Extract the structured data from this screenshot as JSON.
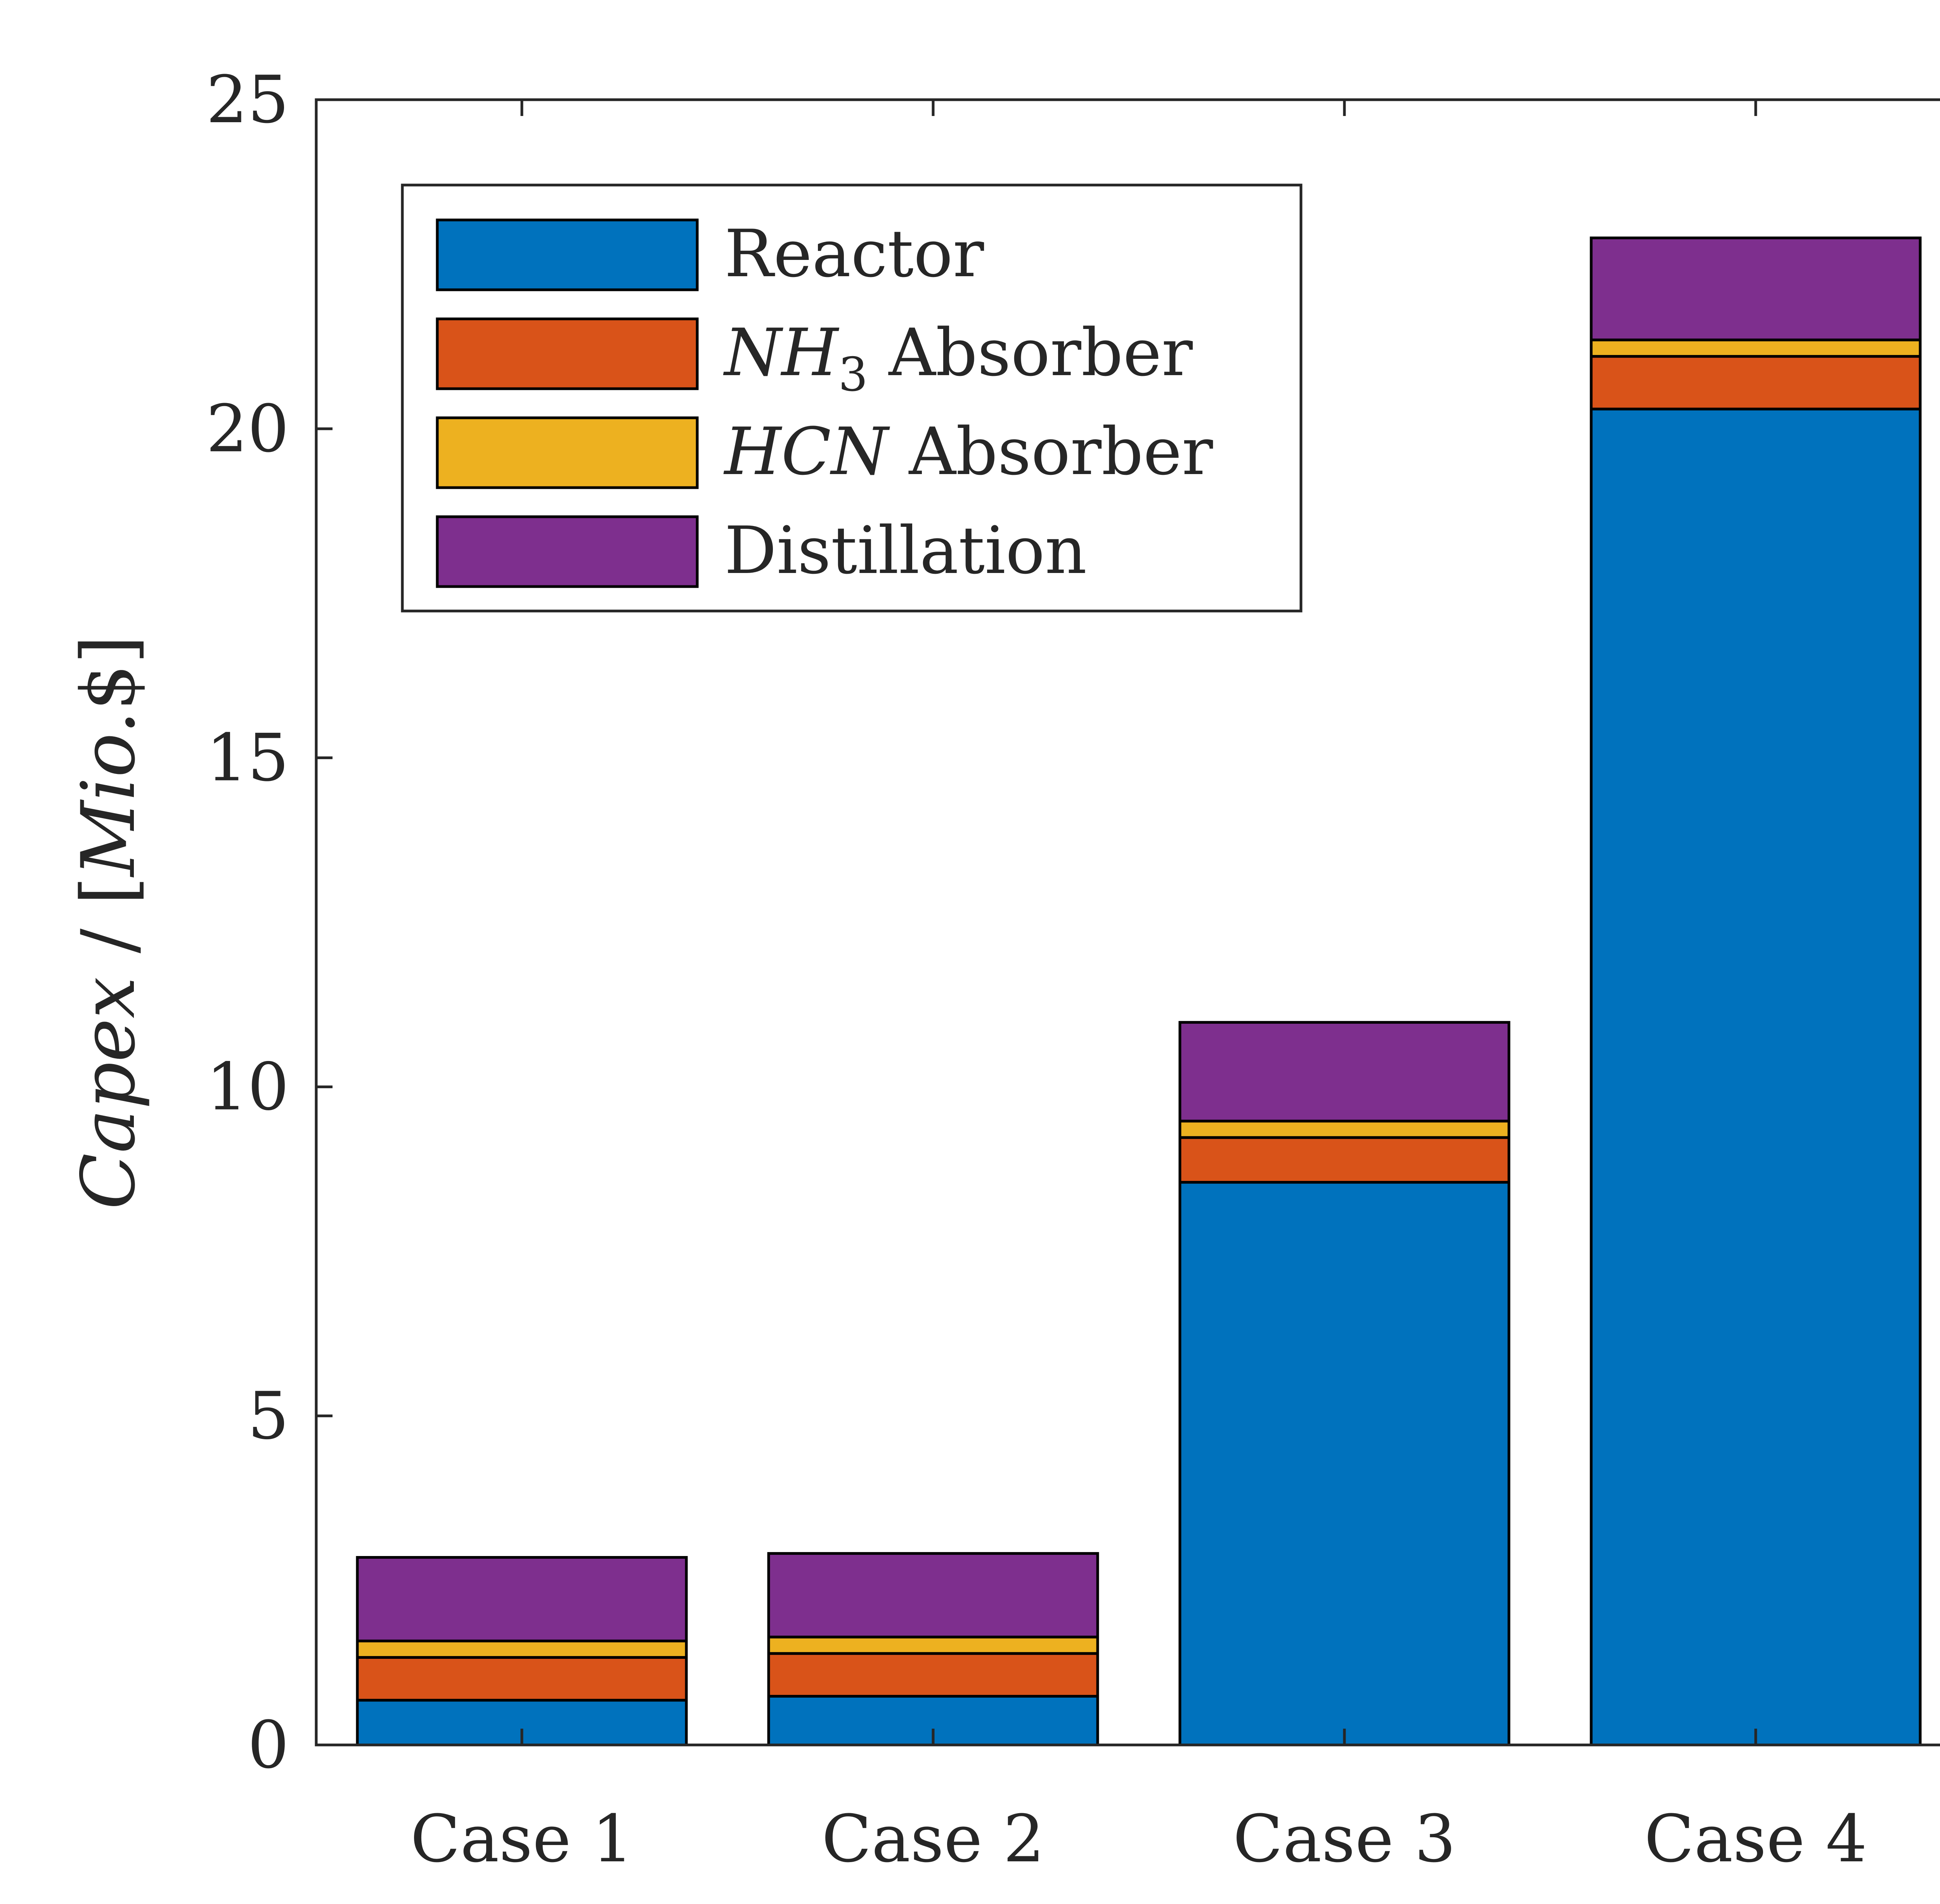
{
  "chart_data": {
    "type": "bar",
    "stacked": true,
    "categories": [
      "Case 1",
      "Case 2",
      "Case 3",
      "Case 4"
    ],
    "series": [
      {
        "name": "Reactor",
        "legend": {
          "var": "",
          "sub": "",
          "text": "Reactor"
        },
        "color": "#0072BD",
        "values": [
          0.68,
          0.74,
          8.55,
          20.3
        ]
      },
      {
        "name": "NH3 Absorber",
        "legend": {
          "var": "NH",
          "sub": "3",
          "text": " Absorber"
        },
        "color": "#D95319",
        "values": [
          0.65,
          0.65,
          0.68,
          0.8
        ]
      },
      {
        "name": "HCN Absorber",
        "legend": {
          "var": "HCN",
          "sub": "",
          "text": " Absorber"
        },
        "color": "#EDB120",
        "values": [
          0.25,
          0.25,
          0.25,
          0.25
        ]
      },
      {
        "name": "Distillation",
        "legend": {
          "var": "",
          "sub": "",
          "text": "Distillation"
        },
        "color": "#7E2F8E",
        "values": [
          1.27,
          1.27,
          1.5,
          1.55
        ]
      }
    ],
    "ylabel": "Capex / [Mio.$]",
    "ylabel_parts": {
      "var": "Capex",
      "sep": " / ",
      "bracket_open": "[",
      "unit": "Mio.",
      "currency": "$",
      "bracket_close": "]"
    },
    "ylim": [
      0,
      25
    ],
    "yticks": [
      "0",
      "5",
      "10",
      "15",
      "20",
      "25"
    ],
    "grid": false,
    "legend_position": "top-left"
  }
}
